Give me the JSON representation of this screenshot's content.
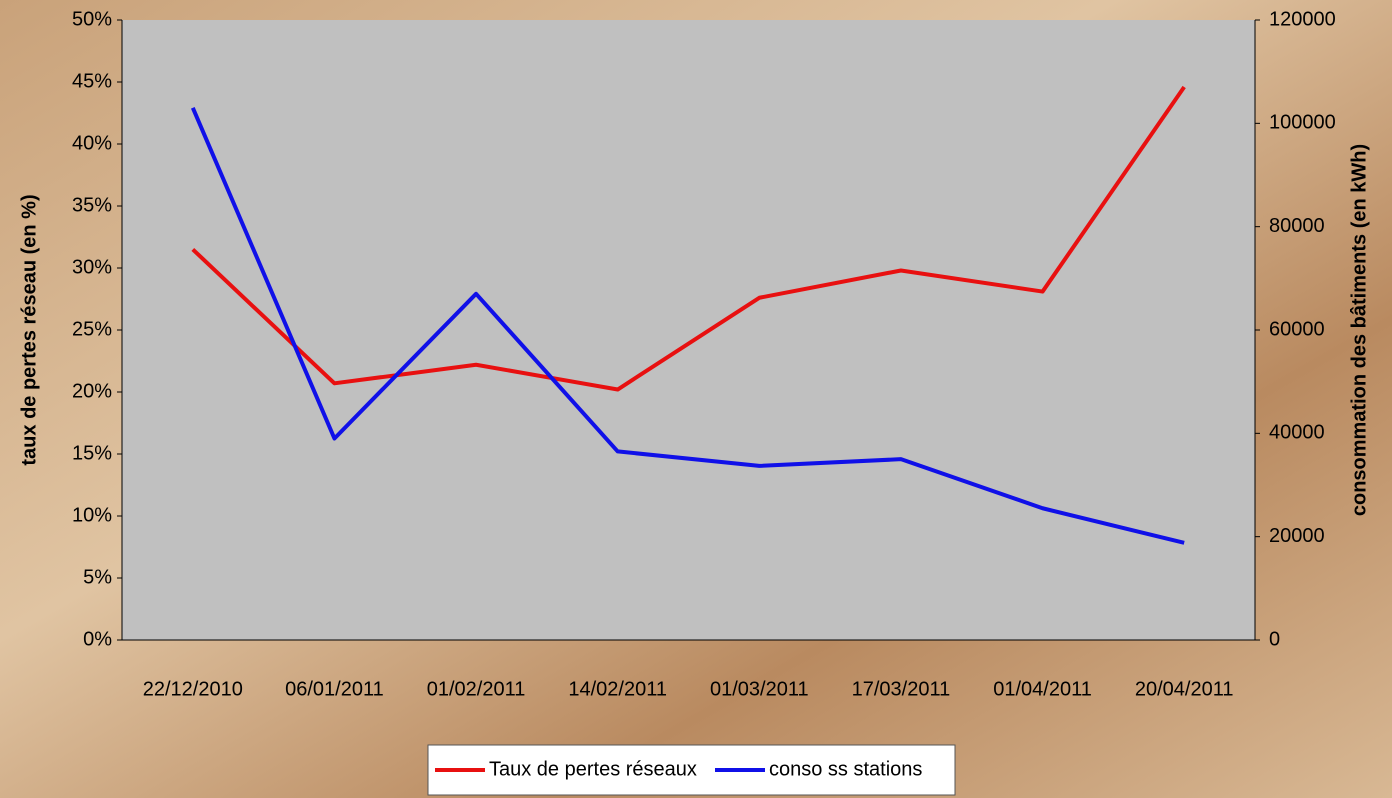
{
  "chart_data": {
    "type": "line",
    "categories": [
      "22/12/2010",
      "06/01/2011",
      "01/02/2011",
      "14/02/2011",
      "01/03/2011",
      "17/03/2011",
      "01/04/2011",
      "20/04/2011"
    ],
    "series": [
      {
        "name": "Taux de pertes réseaux",
        "color": "#e81010",
        "values": [
          31.5,
          20.7,
          22.2,
          20.2,
          27.6,
          29.8,
          28.1,
          44.6
        ]
      },
      {
        "name": "conso ss stations",
        "color": "#1010e8",
        "axis": "y2",
        "values": [
          103000,
          39000,
          67000,
          36500,
          33700,
          35000,
          25500,
          18800
        ]
      }
    ],
    "ylabel": "taux de pertes réseau (en %)",
    "y2label": "consommation des bâtiments (en kWh)",
    "ylim": [
      0,
      50
    ],
    "yticks": [
      {
        "value": 0,
        "label": "0%"
      },
      {
        "value": 5,
        "label": "5%"
      },
      {
        "value": 10,
        "label": "10%"
      },
      {
        "value": 15,
        "label": "15%"
      },
      {
        "value": 20,
        "label": "20%"
      },
      {
        "value": 25,
        "label": "25%"
      },
      {
        "value": 30,
        "label": "30%"
      },
      {
        "value": 35,
        "label": "35%"
      },
      {
        "value": 40,
        "label": "40%"
      },
      {
        "value": 45,
        "label": "45%"
      },
      {
        "value": 50,
        "label": "50%"
      }
    ],
    "y2lim": [
      0,
      120000
    ],
    "y2ticks": [
      0,
      20000,
      40000,
      60000,
      80000,
      100000,
      120000
    ],
    "grid": false,
    "legend": "bottom"
  }
}
